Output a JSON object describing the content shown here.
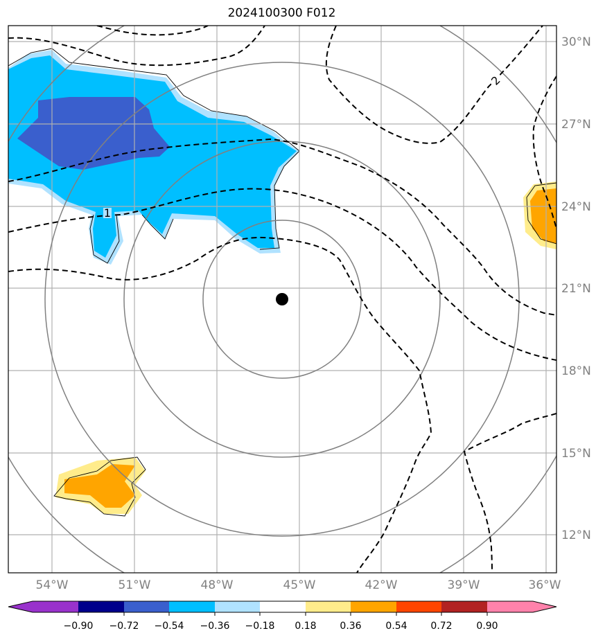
{
  "title": "2024100300 F012",
  "map": {
    "lat_labels": [
      "30°N",
      "27°N",
      "24°N",
      "21°N",
      "18°N",
      "15°N",
      "12°N"
    ],
    "lon_labels": [
      "54°W",
      "51°W",
      "48°W",
      "45°W",
      "42°W",
      "39°W",
      "36°W"
    ],
    "center_marker": {
      "lon": -45.6,
      "lat": 20.6
    },
    "contour_labels": [
      "1",
      "2"
    ]
  },
  "colorbar": {
    "labels": [
      "−0.90",
      "−0.72",
      "−0.54",
      "−0.36",
      "−0.18",
      "0.18",
      "0.36",
      "0.54",
      "0.72",
      "0.90"
    ],
    "colors": [
      "#9932cc",
      "#00008b",
      "#3a5fcd",
      "#00bfff",
      "#b0e2ff",
      "#ffffff",
      "#ffec8b",
      "#ffa500",
      "#ff4500",
      "#b22222",
      "#ff82ab"
    ]
  }
}
